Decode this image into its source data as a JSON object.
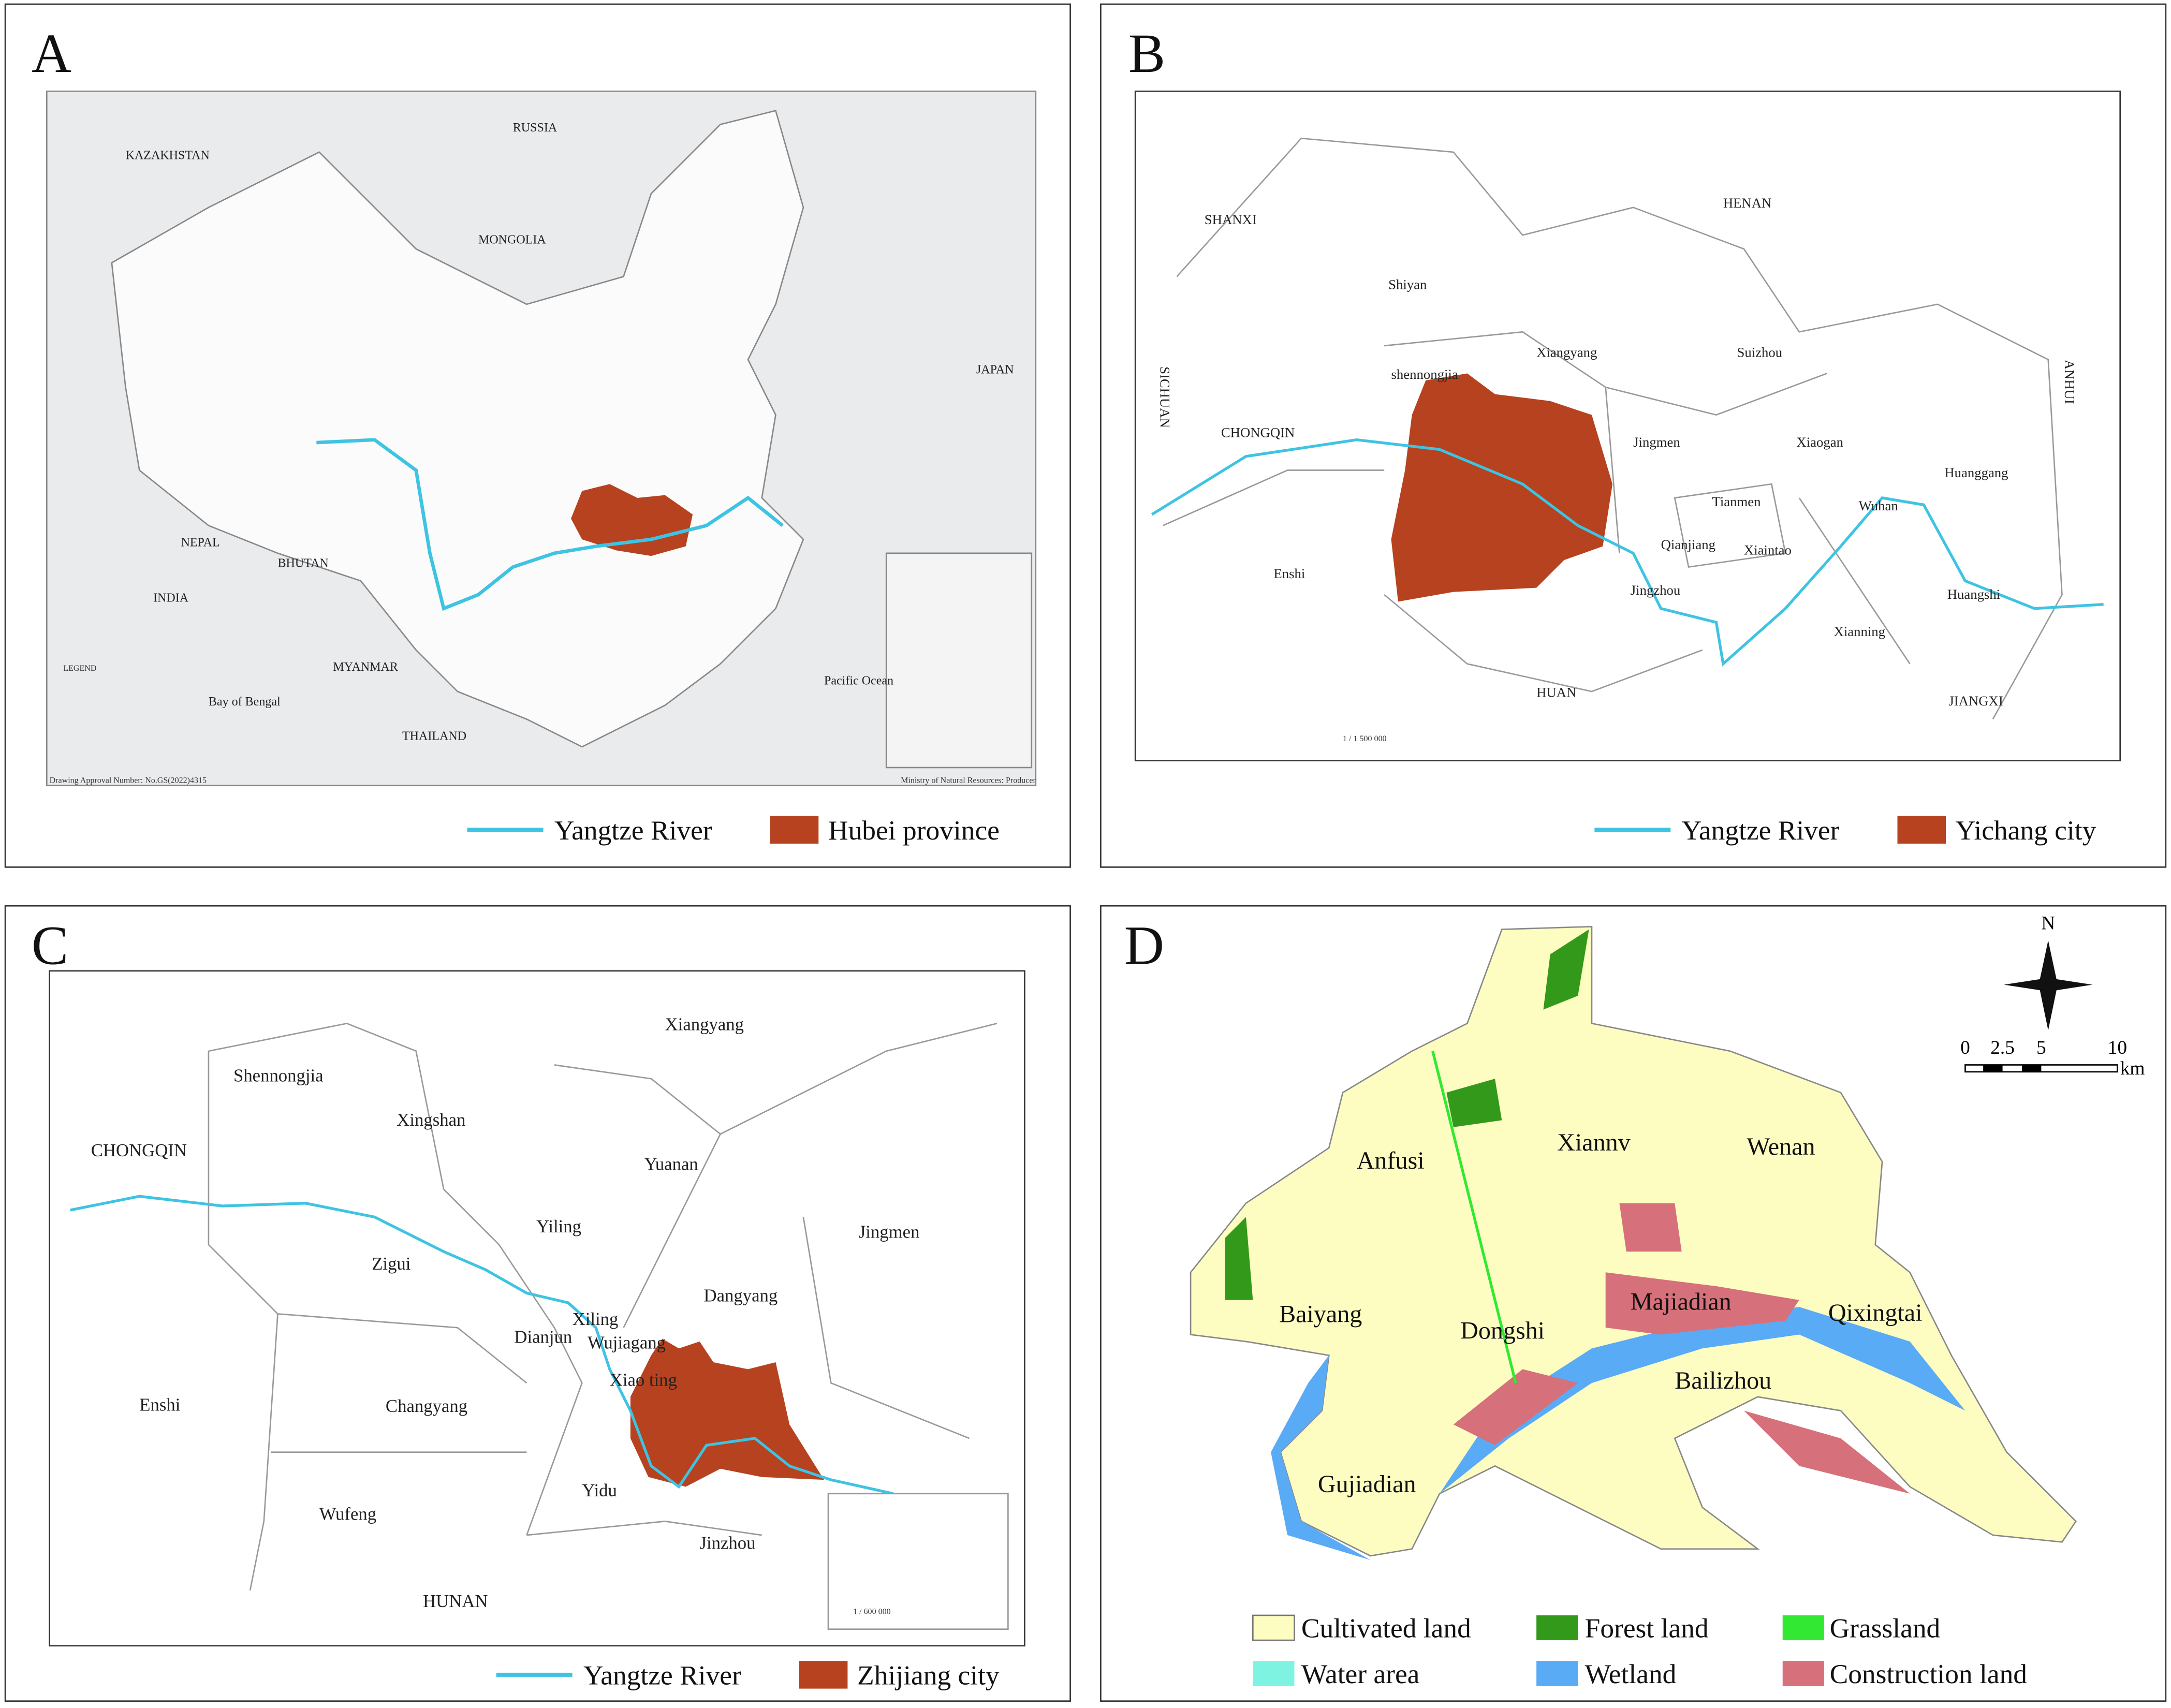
{
  "panels": {
    "A": {
      "letter": "A",
      "map_labels": [
        "RUSSIA",
        "KAZAKHSTAN",
        "MONGOLIA",
        "INDIA",
        "NEPAL",
        "BHUTAN",
        "MYANMAR",
        "THAILAND",
        "JAPAN",
        "Pacific Ocean",
        "Bay of Bengal",
        "LEGEND"
      ],
      "footer_left": "Drawing Approval Number: No.GS(2022)4315",
      "footer_right": "Ministry of Natural Resources: Producer",
      "legend": [
        {
          "label": "Yangtze River",
          "color": "#3ec3e2"
        },
        {
          "label": "Hubei province",
          "color": "#b6421f"
        }
      ]
    },
    "B": {
      "letter": "B",
      "map_labels": [
        "SHANXI",
        "HENAN",
        "SICHUAN",
        "ANHUI",
        "Shiyan",
        "Xiangyang",
        "shennongjia",
        "Suizhou",
        "CHONGQIN",
        "Jingmen",
        "Xiaogan",
        "Huanggang",
        "Tianmen",
        "Wuhan",
        "Qianjiang",
        "Xiaintao",
        "Enshi",
        "Jingzhou",
        "Huangshi",
        "Xianning",
        "HUAN",
        "JIANGXI"
      ],
      "scale": "1 / 1 500 000",
      "legend": [
        {
          "label": "Yangtze River",
          "color": "#3ec3e2"
        },
        {
          "label": "Yichang city",
          "color": "#b6421f"
        }
      ]
    },
    "C": {
      "letter": "C",
      "map_labels": [
        "Shennongjia",
        "Xiangyang",
        "Xingshan",
        "CHONGQIN",
        "Yuanan",
        "Yiling",
        "Jingmen",
        "Zigui",
        "Dangyang",
        "Xiling",
        "Dianjun",
        "Wujiagang",
        "Xiao ting",
        "Enshi",
        "Changyang",
        "Yidu",
        "Wufeng",
        "Jinzhou",
        "HUNAN"
      ],
      "scale": "1 / 600 000",
      "legend": [
        {
          "label": "Yangtze River",
          "color": "#3ec3e2"
        },
        {
          "label": "Zhijiang city",
          "color": "#b6421f"
        }
      ]
    },
    "D": {
      "letter": "D",
      "north": "N",
      "scale_ticks": [
        "0",
        "2.5",
        "5",
        "10"
      ],
      "scale_unit": "km",
      "map_labels": [
        "Anfusi",
        "Xiannv",
        "Wenan",
        "Baiyang",
        "Dongshi",
        "Majiadian",
        "Qixingtai",
        "Bailizhou",
        "Gujiadian"
      ],
      "legend": [
        {
          "label": "Cultivated land",
          "color": "#fdfdc2"
        },
        {
          "label": "Forest land",
          "color": "#33991a"
        },
        {
          "label": "Grassland",
          "color": "#33e833"
        },
        {
          "label": "Water area",
          "color": "#7ff3e2"
        },
        {
          "label": "Wetland",
          "color": "#5aabf5"
        },
        {
          "label": "Construction land",
          "color": "#d6707a"
        }
      ]
    }
  }
}
